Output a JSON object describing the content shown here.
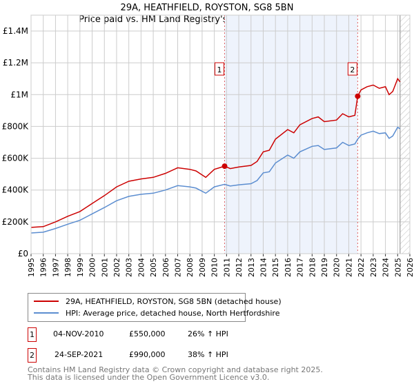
{
  "chart_data": {
    "type": "line",
    "title": "29A, HEATHFIELD, ROYSTON, SG8 5BN",
    "subtitle": "Price paid vs. HM Land Registry's House Price Index (HPI)",
    "xlim": [
      1995,
      2026
    ],
    "ylim": [
      0,
      1400000
    ],
    "x_ticks": [
      "1995",
      "1996",
      "1997",
      "1998",
      "1999",
      "2000",
      "2001",
      "2002",
      "2003",
      "2004",
      "2005",
      "2006",
      "2007",
      "2008",
      "2009",
      "2010",
      "2011",
      "2012",
      "2013",
      "2014",
      "2015",
      "2016",
      "2017",
      "2018",
      "2019",
      "2020",
      "2021",
      "2022",
      "2023",
      "2024",
      "2025",
      "2026"
    ],
    "y_ticks": [
      {
        "v": 0,
        "label": "£0"
      },
      {
        "v": 200000,
        "label": "£200K"
      },
      {
        "v": 400000,
        "label": "£400K"
      },
      {
        "v": 600000,
        "label": "£600K"
      },
      {
        "v": 800000,
        "label": "£800K"
      },
      {
        "v": 1000000,
        "label": "£1M"
      },
      {
        "v": 1200000,
        "label": "£1.2M"
      },
      {
        "v": 1400000,
        "label": "£1.4M"
      }
    ],
    "grid": true,
    "shaded_range": [
      2010.84,
      2021.73
    ],
    "forecast_hatch_from": 2025.2,
    "series": [
      {
        "name": "29A, HEATHFIELD, ROYSTON, SG8 5BN (detached house)",
        "color": "#cc0000",
        "x": [
          1995,
          1996,
          1997,
          1998,
          1999,
          2000,
          2001,
          2002,
          2003,
          2004,
          2005,
          2006,
          2007,
          2008,
          2008.5,
          2009.3,
          2010,
          2010.84,
          2011.3,
          2012,
          2013,
          2013.5,
          2014,
          2014.5,
          2015,
          2016,
          2016.5,
          2017,
          2018,
          2018.5,
          2019,
          2020,
          2020.5,
          2021,
          2021.5,
          2021.73,
          2022,
          2022.5,
          2023,
          2023.5,
          2024,
          2024.3,
          2024.6,
          2025,
          2025.2
        ],
        "y": [
          165000,
          170000,
          200000,
          235000,
          265000,
          315000,
          365000,
          420000,
          455000,
          470000,
          480000,
          505000,
          540000,
          530000,
          520000,
          480000,
          530000,
          550000,
          535000,
          545000,
          555000,
          580000,
          640000,
          650000,
          720000,
          780000,
          760000,
          810000,
          850000,
          860000,
          830000,
          840000,
          880000,
          860000,
          870000,
          990000,
          1030000,
          1050000,
          1060000,
          1040000,
          1050000,
          1000000,
          1020000,
          1100000,
          1080000
        ]
      },
      {
        "name": "HPI: Average price, detached house, North Hertfordshire",
        "color": "#5b8dd0",
        "x": [
          1995,
          1996,
          1997,
          1998,
          1999,
          2000,
          2001,
          2002,
          2003,
          2004,
          2005,
          2006,
          2007,
          2008,
          2008.5,
          2009.3,
          2010,
          2010.84,
          2011.3,
          2012,
          2013,
          2013.5,
          2014,
          2014.5,
          2015,
          2016,
          2016.5,
          2017,
          2018,
          2018.5,
          2019,
          2020,
          2020.5,
          2021,
          2021.5,
          2021.73,
          2022,
          2022.5,
          2023,
          2023.5,
          2024,
          2024.3,
          2024.6,
          2025,
          2025.2
        ],
        "y": [
          130000,
          135000,
          158000,
          185000,
          210000,
          250000,
          290000,
          333000,
          360000,
          373000,
          380000,
          400000,
          428000,
          420000,
          412000,
          380000,
          420000,
          436000,
          425000,
          433000,
          440000,
          460000,
          508000,
          515000,
          570000,
          620000,
          600000,
          640000,
          675000,
          680000,
          655000,
          665000,
          700000,
          680000,
          690000,
          720000,
          745000,
          760000,
          770000,
          755000,
          760000,
          725000,
          740000,
          795000,
          785000
        ]
      }
    ],
    "annotations": [
      {
        "label": "1",
        "x": 2010.84,
        "y": 550000
      },
      {
        "label": "2",
        "x": 2021.73,
        "y": 990000
      }
    ]
  },
  "legend": {
    "items": [
      "29A, HEATHFIELD, ROYSTON, SG8 5BN (detached house)",
      "HPI: Average price, detached house, North Hertfordshire"
    ]
  },
  "sales": [
    {
      "num": "1",
      "date": "04-NOV-2010",
      "price": "£550,000",
      "hpi": "26% ↑ HPI"
    },
    {
      "num": "2",
      "date": "24-SEP-2021",
      "price": "£990,000",
      "hpi": "38% ↑ HPI"
    }
  ],
  "footer": [
    "Contains HM Land Registry data © Crown copyright and database right 2025.",
    "This data is licensed under the Open Government Licence v3.0."
  ]
}
